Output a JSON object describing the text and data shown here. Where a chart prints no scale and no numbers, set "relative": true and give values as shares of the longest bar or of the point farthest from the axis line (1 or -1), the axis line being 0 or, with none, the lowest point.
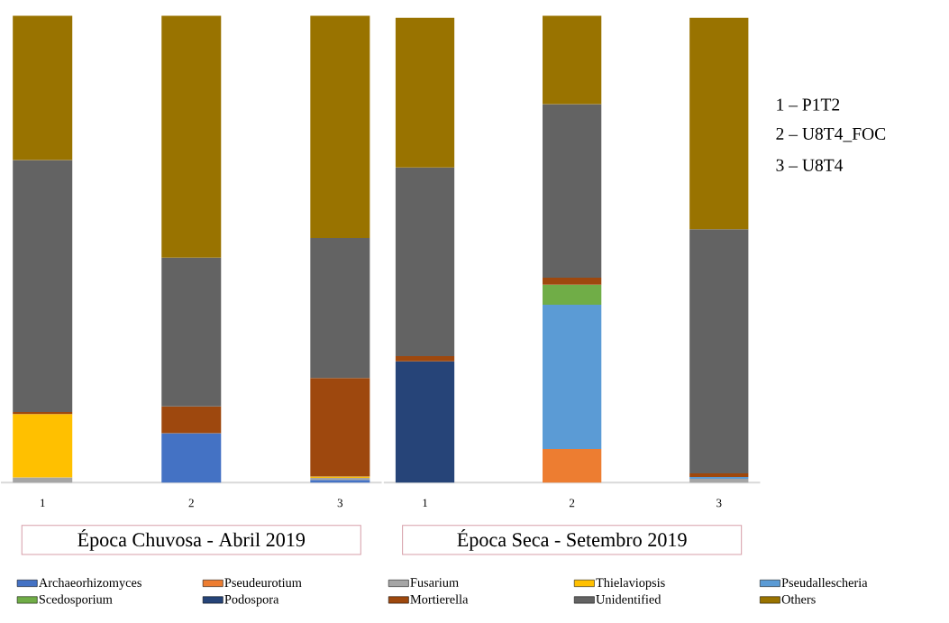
{
  "chart_data": [
    {
      "type": "bar",
      "stacked": true,
      "relative": true,
      "title": "Época Chuvosa - Abril 2019",
      "categories": [
        "1",
        "2",
        "3"
      ],
      "legend": "bottom",
      "series": [
        {
          "name": "Archaeorhizomyces",
          "color": "#4472c4",
          "values": [
            null,
            0.106,
            0.006
          ]
        },
        {
          "name": "Pseudeurotium",
          "color": "#ed7d31",
          "values": [
            null,
            null,
            null
          ]
        },
        {
          "name": "Fusarium",
          "color": "#a5a5a5",
          "values": [
            0.011,
            null,
            0.004
          ]
        },
        {
          "name": "Thielaviopsis",
          "color": "#ffc000",
          "values": [
            0.136,
            null,
            0.003
          ]
        },
        {
          "name": "Pseudallescheria",
          "color": "#5b9bd5",
          "values": [
            null,
            null,
            null
          ]
        },
        {
          "name": "Scedosporium",
          "color": "#70ad47",
          "values": [
            null,
            null,
            null
          ]
        },
        {
          "name": "Podospora",
          "color": "#264478",
          "values": [
            null,
            null,
            null
          ]
        },
        {
          "name": "Mortierella",
          "color": "#9e480e",
          "values": [
            0.004,
            0.057,
            0.211
          ]
        },
        {
          "name": "Unidentified",
          "color": "#636363",
          "values": [
            0.54,
            0.319,
            0.3
          ]
        },
        {
          "name": "Others",
          "color": "#997300",
          "values": [
            0.309,
            0.518,
            0.476
          ]
        }
      ]
    },
    {
      "type": "bar",
      "stacked": true,
      "relative": true,
      "title": "Época Seca - Setembro 2019",
      "categories": [
        "1",
        "2",
        "3"
      ],
      "annotations": [
        "1 – P1T2",
        "2 – U8T4_FOC",
        "3 – U8T4"
      ],
      "series": [
        {
          "color": "#4472c4",
          "values": [
            null,
            null,
            null
          ]
        },
        {
          "color": "#ed7d31",
          "values": [
            null,
            0.072,
            null
          ]
        },
        {
          "color": "#a5a5a5",
          "values": [
            null,
            null,
            0.008
          ]
        },
        {
          "color": "#ffc000",
          "values": [
            null,
            null,
            null
          ]
        },
        {
          "color": "#5b9bd5",
          "values": [
            null,
            0.309,
            0.004
          ]
        },
        {
          "color": "#70ad47",
          "values": [
            null,
            0.043,
            null
          ]
        },
        {
          "color": "#264478",
          "values": [
            0.26,
            null,
            null
          ]
        },
        {
          "color": "#9e480e",
          "values": [
            0.011,
            0.015,
            0.008
          ]
        },
        {
          "color": "#636363",
          "values": [
            0.404,
            0.372,
            0.523
          ]
        },
        {
          "color": "#997300",
          "values": [
            0.321,
            0.189,
            0.453
          ]
        }
      ]
    }
  ]
}
